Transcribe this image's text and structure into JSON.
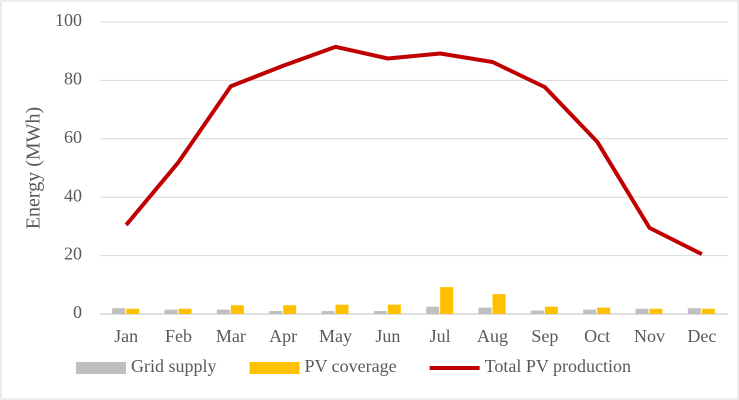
{
  "chart_data": {
    "type": "combo",
    "y_label": "Energy (MWh)",
    "categories": [
      "Jan",
      "Feb",
      "Mar",
      "Apr",
      "May",
      "Jun",
      "Jul",
      "Aug",
      "Sep",
      "Oct",
      "Nov",
      "Dec"
    ],
    "series": [
      {
        "name": "Grid supply",
        "type": "bar",
        "color": "#bfbfbf",
        "values": [
          2,
          1.5,
          1.5,
          1,
          1,
          1,
          2.5,
          2.2,
          1.2,
          1.5,
          1.8,
          2
        ]
      },
      {
        "name": "PV coverage",
        "type": "bar",
        "color": "#ffc000",
        "values": [
          1.8,
          1.8,
          3,
          3,
          3.2,
          3.2,
          9.2,
          6.8,
          2.5,
          2.2,
          1.8,
          1.8
        ]
      },
      {
        "name": "Total PV production",
        "type": "line",
        "color": "#c00000",
        "values": [
          30.5,
          52,
          78,
          85,
          91.5,
          87.5,
          89.2,
          86.3,
          77.7,
          59,
          29.5,
          20.5
        ]
      }
    ],
    "ylim": [
      0,
      100
    ],
    "yticks": [
      0,
      20,
      40,
      60,
      80,
      100
    ],
    "grid": true,
    "legend": "bottom"
  }
}
